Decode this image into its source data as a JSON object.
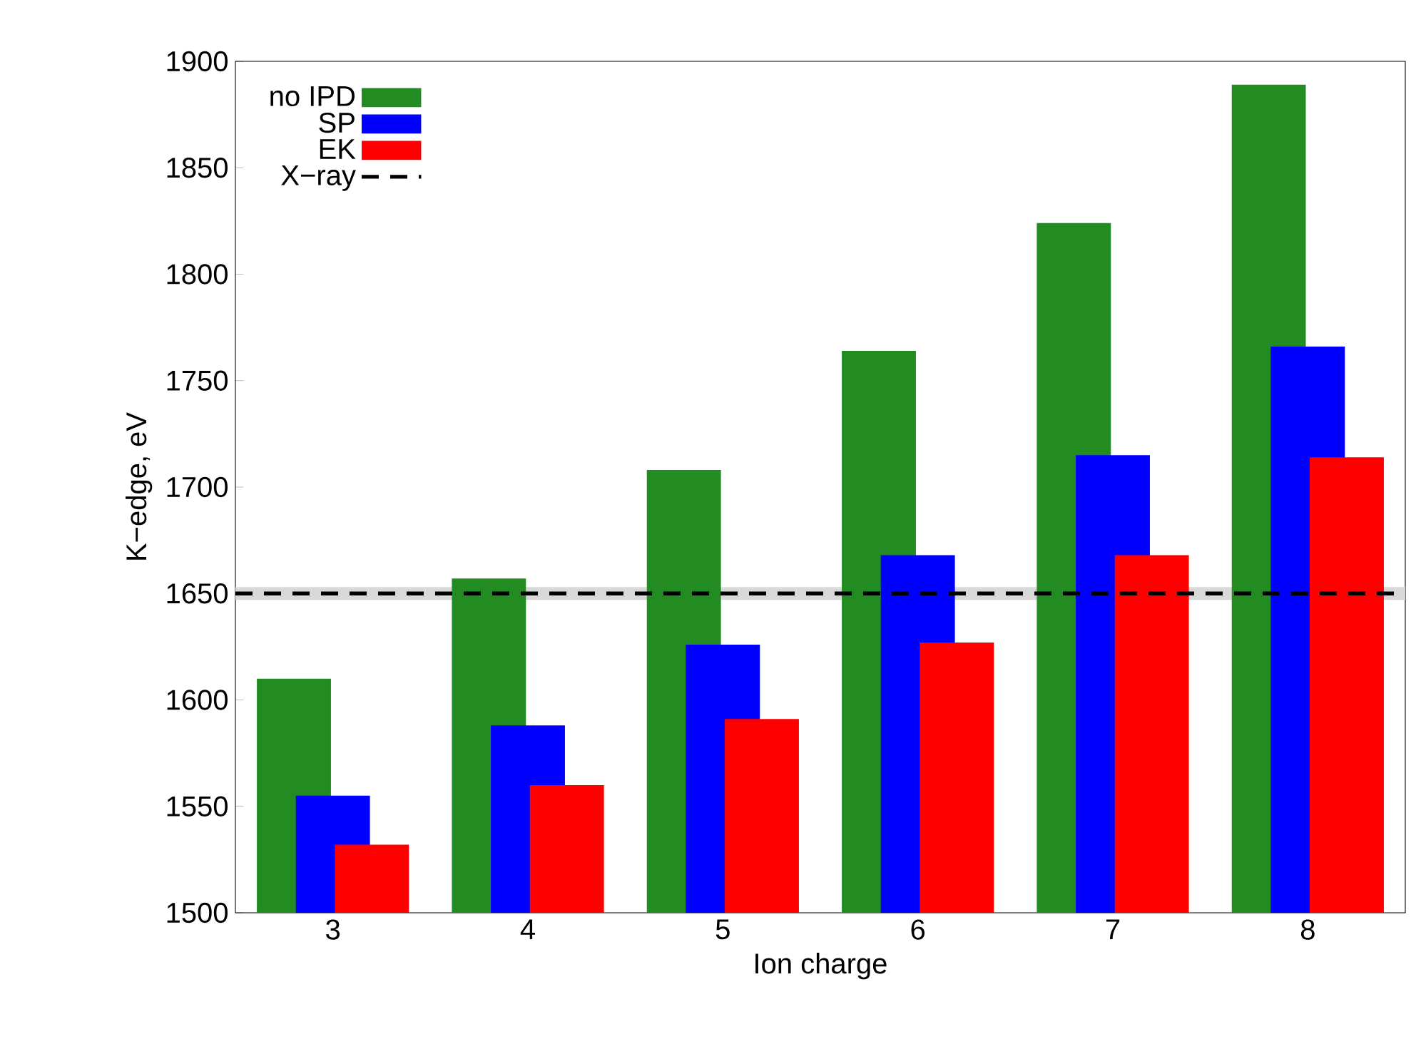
{
  "chart_data": {
    "type": "bar",
    "xlabel": "Ion charge",
    "ylabel": "K−edge, eV",
    "categories": [
      "3",
      "4",
      "5",
      "6",
      "7",
      "8"
    ],
    "series": [
      {
        "name": "no IPD",
        "color": "#228b22",
        "values": [
          1610,
          1657,
          1708,
          1764,
          1824,
          1889
        ]
      },
      {
        "name": "SP",
        "color": "#0000ff",
        "values": [
          1555,
          1588,
          1626,
          1668,
          1715,
          1766
        ]
      },
      {
        "name": "EK",
        "color": "#ff0000",
        "values": [
          1532,
          1560,
          1591,
          1627,
          1668,
          1714
        ]
      }
    ],
    "ylim": [
      1500,
      1900
    ],
    "yticks": [
      1500,
      1550,
      1600,
      1650,
      1700,
      1750,
      1800,
      1850,
      1900
    ],
    "ref_lines": [
      {
        "axis": "y",
        "value": 1650,
        "label": "X−ray",
        "color": "#000000",
        "line_style": "dashed"
      }
    ],
    "bands": [
      {
        "axis": "y",
        "from": 1647,
        "to": 1653,
        "color": "#d9d9d9"
      }
    ],
    "legend": "top left",
    "grid": false
  }
}
